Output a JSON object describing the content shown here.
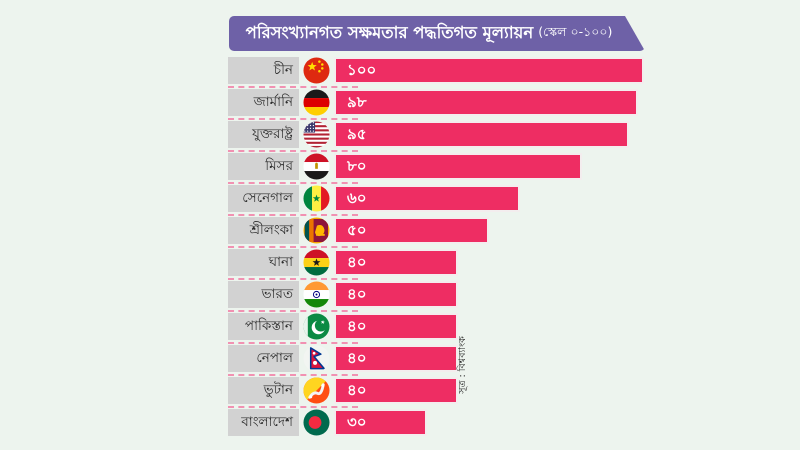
{
  "title": {
    "text": "পরিসংখ্যানগত সক্ষমতার পদ্ধতিগত মূল্যায়ন",
    "scale_note": "(স্কেল ০-১০০)"
  },
  "source": "সূত্র : বিশ্বব্যাংক",
  "colors": {
    "background": "#edf4ee",
    "banner": "#6e61a7",
    "bar": "#ee2d63",
    "bar_border": "#f3edee",
    "label_box": "#d2d2d2",
    "separator": "#f191b2",
    "title_text": "#ffffff",
    "bar_value_text": "#ffffff"
  },
  "chart_data": {
    "type": "bar",
    "orientation": "horizontal",
    "title": "পরিসংখ্যানগত সক্ষমতার পদ্ধতিগত মূল্যায়ন (স্কেল ০-১০০)",
    "axis_range": [
      0,
      100
    ],
    "grid": false,
    "legend": false,
    "categories": [
      "চীন",
      "জার্মানি",
      "যুক্তরাষ্ট্র",
      "মিসর",
      "সেনেগাল",
      "শ্রীলংকা",
      "ঘানা",
      "ভারত",
      "পাকিস্তান",
      "নেপাল",
      "ভুটান",
      "বাংলাদেশ"
    ],
    "flags": [
      "china",
      "germany",
      "usa",
      "egypt",
      "senegal",
      "sri-lanka",
      "ghana",
      "india",
      "pakistan",
      "nepal",
      "bhutan",
      "bangladesh"
    ],
    "values": [
      100,
      98,
      95,
      80,
      60,
      50,
      40,
      40,
      40,
      40,
      40,
      30
    ],
    "value_labels": [
      "১০০",
      "৯৮",
      "৯৫",
      "৮০",
      "৬০",
      "৫০",
      "৪০",
      "৪০",
      "৪০",
      "৪০",
      "৪০",
      "৩০"
    ],
    "source": "সূত্র : বিশ্বব্যাংক"
  }
}
